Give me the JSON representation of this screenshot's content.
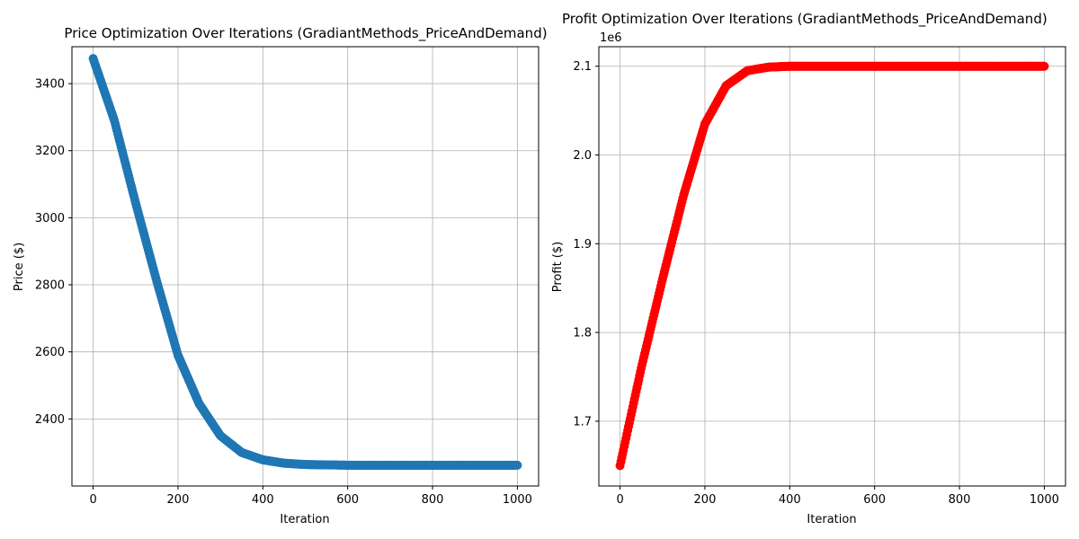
{
  "chart_data": [
    {
      "type": "scatter",
      "title": "Price Optimization Over Iterations (GradiantMethods_PriceAndDemand)",
      "xlabel": "Iteration",
      "ylabel": "Price ($)",
      "xlim": [
        -50,
        1050
      ],
      "ylim": [
        2200,
        3510
      ],
      "x_ticks": [
        0,
        200,
        400,
        600,
        800,
        1000
      ],
      "y_ticks": [
        2400,
        2600,
        2800,
        3000,
        3200,
        3400
      ],
      "x_tick_labels": [
        "0",
        "200",
        "400",
        "600",
        "800",
        "1000"
      ],
      "y_tick_labels": [
        "2400",
        "2600",
        "2800",
        "3000",
        "3200",
        "3400"
      ],
      "grid": true,
      "color": "#1f77b4",
      "series": [
        {
          "x": [
            0,
            50,
            100,
            150,
            200,
            250,
            300,
            350,
            400,
            450,
            500,
            550,
            600,
            700,
            800,
            900,
            1000
          ],
          "values": [
            3475,
            3290,
            3045,
            2810,
            2590,
            2445,
            2350,
            2300,
            2278,
            2268,
            2264,
            2263,
            2262,
            2262,
            2262,
            2262,
            2262
          ]
        }
      ]
    },
    {
      "type": "scatter",
      "title": "Profit Optimization Over Iterations (GradiantMethods_PriceAndDemand)",
      "xlabel": "Iteration",
      "ylabel": "Profit ($)",
      "y_offset_label": "1e6",
      "xlim": [
        -50,
        1050
      ],
      "ylim": [
        1.627,
        2.122
      ],
      "x_ticks": [
        0,
        200,
        400,
        600,
        800,
        1000
      ],
      "y_ticks": [
        1.7,
        1.8,
        1.9,
        2.0,
        2.1
      ],
      "x_tick_labels": [
        "0",
        "200",
        "400",
        "600",
        "800",
        "1000"
      ],
      "y_tick_labels": [
        "1.7",
        "1.8",
        "1.9",
        "2.0",
        "2.1"
      ],
      "grid": true,
      "color": "#ff0000",
      "series": [
        {
          "x": [
            0,
            50,
            100,
            150,
            200,
            250,
            300,
            350,
            400,
            450,
            500,
            600,
            700,
            800,
            900,
            1000
          ],
          "values": [
            1.65,
            1.76,
            1.86,
            1.955,
            2.035,
            2.078,
            2.095,
            2.099,
            2.1,
            2.1,
            2.1,
            2.1,
            2.1,
            2.1,
            2.1,
            2.1
          ]
        }
      ]
    }
  ]
}
